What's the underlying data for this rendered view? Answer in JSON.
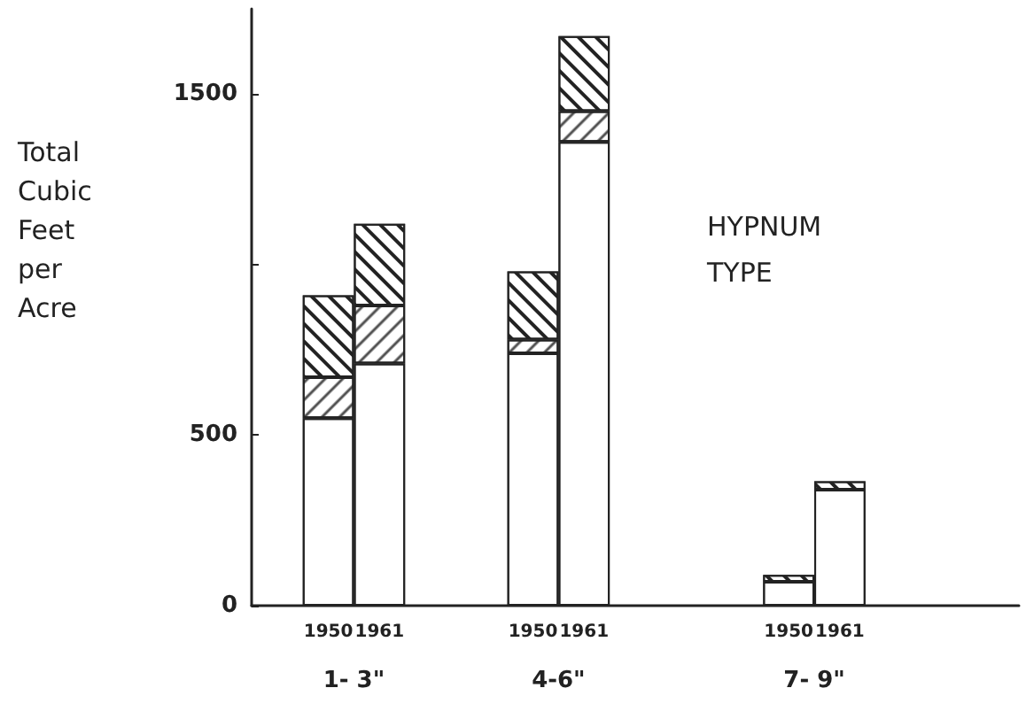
{
  "chart_data": {
    "type": "bar",
    "title": "HYPNUM TYPE",
    "ylabel": "Total Cubic Feet per Acre",
    "categories": [
      null,
      "1950",
      "1961",
      null,
      null,
      "1950",
      "1961",
      null,
      null,
      null,
      "1950",
      "1961",
      null,
      null,
      null
    ],
    "annotations": [
      "1- 3\"",
      "4-6\"",
      "7- 9\""
    ],
    "stacked": true,
    "series": [
      {
        "color": "#ffffff",
        "values": [
          null,
          550,
          710,
          null,
          null,
          740,
          1360,
          null,
          null,
          null,
          70,
          340,
          null,
          null,
          null
        ]
      },
      {
        "color": "#ffffff",
        "values": [
          null,
          120,
          170,
          null,
          null,
          40,
          90,
          null,
          null,
          null,
          null,
          null,
          null,
          null,
          null
        ]
      },
      {
        "color": "#ffffff",
        "values": [
          null,
          240,
          240,
          null,
          null,
          200,
          220,
          null,
          null,
          null,
          20,
          25,
          null,
          null,
          null
        ]
      }
    ],
    "ylim": [
      0,
      1750
    ],
    "yticks": [
      0,
      500,
      {
        "value": 1000,
        "label": null
      },
      1500
    ],
    "grid": false
  }
}
